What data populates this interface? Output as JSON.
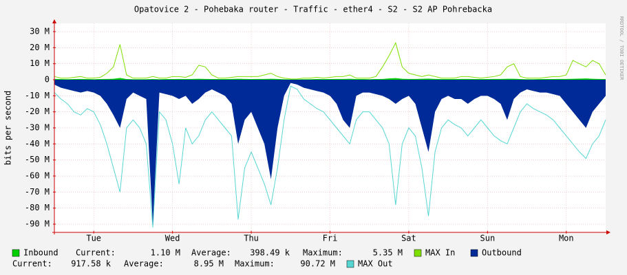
{
  "chart_data": {
    "type": "area",
    "title": "Opatovice 2 - Pohebaka router - Traffic - ether4 - S2 - S2 AP Pohrebacka",
    "y_label": "bits per second",
    "watermark": "RRDTOOL / TOBI OETIKER",
    "grid": true,
    "xlim": [
      0,
      168
    ],
    "xticks": [
      {
        "value": 12,
        "label": "Tue"
      },
      {
        "value": 36,
        "label": "Wed"
      },
      {
        "value": 60,
        "label": "Thu"
      },
      {
        "value": 84,
        "label": "Fri"
      },
      {
        "value": 108,
        "label": "Sat"
      },
      {
        "value": 132,
        "label": "Sun"
      },
      {
        "value": 156,
        "label": "Mon"
      }
    ],
    "ylim": [
      -95,
      35
    ],
    "yticks": [
      {
        "value": 30,
        "label": "30 M"
      },
      {
        "value": 20,
        "label": "20 M"
      },
      {
        "value": 10,
        "label": "10 M"
      },
      0,
      {
        "value": -10,
        "label": "-10 M"
      },
      {
        "value": -20,
        "label": "-20 M"
      },
      {
        "value": -30,
        "label": "-30 M"
      },
      {
        "value": -40,
        "label": "-40 M"
      },
      {
        "value": -50,
        "label": "-50 M"
      },
      {
        "value": -60,
        "label": "-60 M"
      },
      {
        "value": -70,
        "label": "-70 M"
      },
      {
        "value": -80,
        "label": "-80 M"
      },
      {
        "value": -90,
        "label": "-90 M"
      }
    ],
    "stat_labels": [
      "Current:",
      "Average:",
      "Maximum:"
    ],
    "x": [
      0,
      2,
      4,
      6,
      8,
      10,
      12,
      14,
      16,
      18,
      20,
      22,
      24,
      26,
      28,
      30,
      32,
      34,
      36,
      38,
      40,
      42,
      44,
      46,
      48,
      50,
      52,
      54,
      56,
      58,
      60,
      62,
      64,
      66,
      68,
      70,
      72,
      74,
      76,
      78,
      80,
      82,
      84,
      86,
      88,
      90,
      92,
      94,
      96,
      98,
      100,
      102,
      104,
      106,
      108,
      110,
      112,
      114,
      116,
      118,
      120,
      122,
      124,
      126,
      128,
      130,
      132,
      134,
      136,
      138,
      140,
      142,
      144,
      146,
      148,
      150,
      152,
      154,
      156,
      158,
      160,
      162,
      164,
      166,
      168
    ],
    "series": [
      {
        "name": "Inbound",
        "type": "area",
        "color": "#00cf00",
        "current": "1.10 M",
        "average": "398.49 k",
        "maximum": "5.35 M",
        "values": [
          0.5,
          0.4,
          0.3,
          0.4,
          0.5,
          0.4,
          0.3,
          0.4,
          0.5,
          0.6,
          1.1,
          0.4,
          0.3,
          0.3,
          0.3,
          0.4,
          0.3,
          0.4,
          0.4,
          0.5,
          0.4,
          0.5,
          0.6,
          0.5,
          0.4,
          0.4,
          0.4,
          0.5,
          0.6,
          0.5,
          0.4,
          0.5,
          0.5,
          0.6,
          0.5,
          0.3,
          0.2,
          0.2,
          0.3,
          0.3,
          0.4,
          0.4,
          0.4,
          0.5,
          0.5,
          0.6,
          0.4,
          0.4,
          0.3,
          0.4,
          0.5,
          0.8,
          1.0,
          0.6,
          0.5,
          0.5,
          0.6,
          0.7,
          0.5,
          0.4,
          0.4,
          0.4,
          0.5,
          0.5,
          0.4,
          0.4,
          0.4,
          0.5,
          0.5,
          0.6,
          0.6,
          0.4,
          0.3,
          0.3,
          0.4,
          0.4,
          0.4,
          0.5,
          0.5,
          0.6,
          0.7,
          0.8,
          0.6,
          0.5,
          0.4
        ]
      },
      {
        "name": "MAX In",
        "type": "line",
        "color": "#7fe000",
        "values": [
          2,
          1,
          1,
          1.5,
          2,
          1,
          1,
          1.5,
          4,
          8,
          22,
          3,
          1,
          1,
          1,
          2,
          1,
          1,
          2,
          2,
          1.5,
          3,
          9,
          8,
          3,
          1,
          1,
          1.5,
          2,
          2,
          2,
          2,
          3,
          4,
          2,
          1,
          0.5,
          0.5,
          1,
          1,
          1.5,
          1,
          1.5,
          2,
          2,
          3,
          1,
          1,
          1,
          2,
          8,
          15,
          23,
          8,
          4,
          3,
          2,
          3,
          2,
          1,
          1,
          1,
          2,
          2,
          1.5,
          1,
          1.5,
          2,
          3,
          8,
          10,
          2,
          1,
          1,
          1,
          1.5,
          2,
          2,
          3,
          12,
          10,
          8,
          12,
          10,
          3
        ]
      },
      {
        "name": "Outbound",
        "type": "area",
        "color": "#002a97",
        "values": [
          -3,
          -5,
          -6,
          -7,
          -8,
          -7,
          -8,
          -10,
          -15,
          -22,
          -30,
          -12,
          -8,
          -10,
          -12,
          -90,
          -8,
          -9,
          -10,
          -12,
          -10,
          -15,
          -12,
          -8,
          -6,
          -8,
          -10,
          -15,
          -40,
          -25,
          -20,
          -30,
          -40,
          -62,
          -30,
          -10,
          -2,
          -3,
          -5,
          -6,
          -7,
          -8,
          -10,
          -15,
          -25,
          -30,
          -10,
          -8,
          -8,
          -9,
          -10,
          -12,
          -15,
          -12,
          -10,
          -15,
          -30,
          -45,
          -20,
          -12,
          -10,
          -12,
          -12,
          -15,
          -12,
          -10,
          -10,
          -12,
          -15,
          -25,
          -12,
          -8,
          -6,
          -7,
          -8,
          -8,
          -9,
          -10,
          -15,
          -20,
          -25,
          -30,
          -20,
          -15,
          -10
        ]
      },
      {
        "name": "MAX Out",
        "type": "line",
        "color": "#55d6d3",
        "current": "917.58 k",
        "average": "8.95 M",
        "maximum": "90.72 M",
        "values": [
          -8,
          -12,
          -15,
          -20,
          -22,
          -18,
          -20,
          -28,
          -40,
          -55,
          -70,
          -30,
          -25,
          -30,
          -40,
          -92,
          -20,
          -25,
          -40,
          -65,
          -30,
          -40,
          -35,
          -25,
          -20,
          -25,
          -30,
          -35,
          -87,
          -55,
          -45,
          -55,
          -65,
          -78,
          -55,
          -25,
          -4,
          -6,
          -12,
          -15,
          -18,
          -20,
          -25,
          -30,
          -35,
          -40,
          -25,
          -20,
          -20,
          -25,
          -30,
          -40,
          -78,
          -40,
          -30,
          -35,
          -55,
          -85,
          -45,
          -30,
          -25,
          -28,
          -30,
          -35,
          -30,
          -25,
          -30,
          -35,
          -38,
          -40,
          -30,
          -20,
          -15,
          -18,
          -20,
          -22,
          -25,
          -30,
          -35,
          -40,
          -45,
          -49,
          -40,
          -35,
          -25
        ]
      }
    ]
  }
}
